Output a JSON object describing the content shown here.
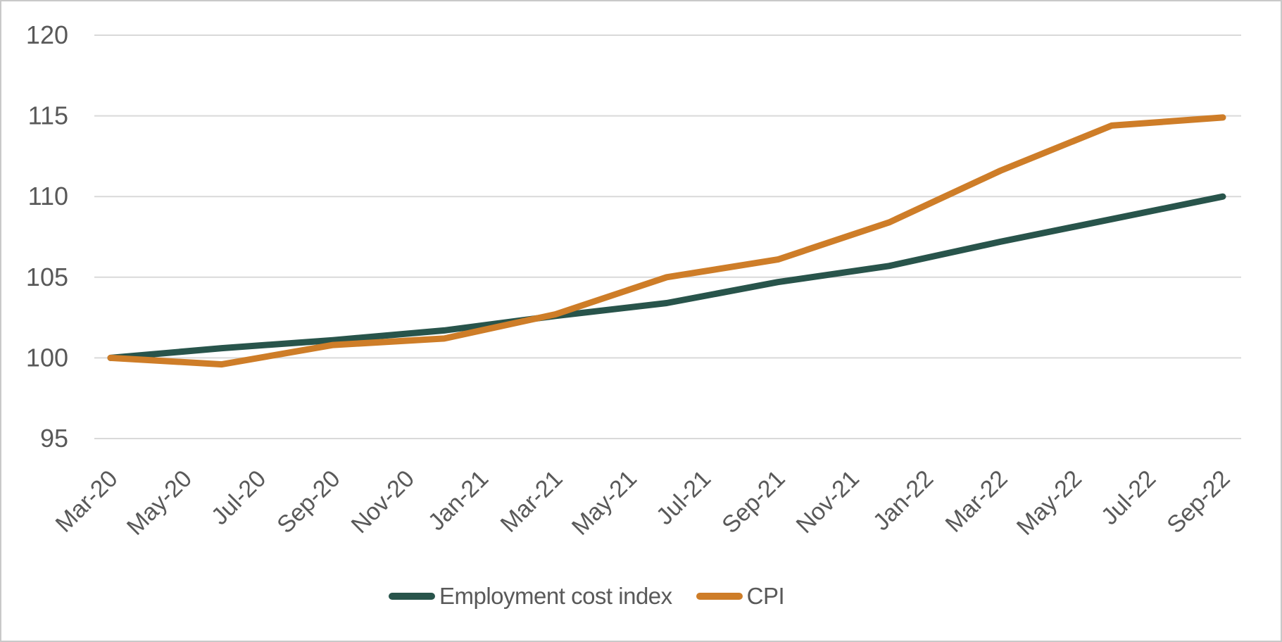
{
  "chart_data": {
    "type": "line",
    "title": "",
    "x_axis": {
      "tick_labels": [
        "Mar-20",
        "May-20",
        "Jul-20",
        "Sep-20",
        "Nov-20",
        "Jan-21",
        "Mar-21",
        "May-21",
        "Jul-21",
        "Sep-21",
        "Nov-21",
        "Jan-22",
        "Mar-22",
        "May-22",
        "Jul-22",
        "Sep-22"
      ],
      "tick_interval_months": 2,
      "label_rotation_deg": -45
    },
    "y_axis": {
      "ticks": [
        95,
        100,
        105,
        110,
        115,
        120
      ],
      "range": [
        95,
        120
      ]
    },
    "categories": [
      "Mar-20",
      "Jun-20",
      "Sep-20",
      "Dec-20",
      "Mar-21",
      "Jun-21",
      "Sep-21",
      "Dec-21",
      "Mar-22",
      "Jun-22",
      "Sep-22"
    ],
    "series": [
      {
        "name": "Employment cost index",
        "color": "#28544B",
        "values": [
          100.0,
          100.6,
          101.1,
          101.7,
          102.6,
          103.4,
          104.7,
          105.7,
          107.2,
          108.6,
          110.0
        ]
      },
      {
        "name": "CPI",
        "color": "#CE7D28",
        "values": [
          100.0,
          99.6,
          100.8,
          101.2,
          102.7,
          105.0,
          106.1,
          108.4,
          111.6,
          114.4,
          114.9
        ]
      }
    ],
    "legend_position": "bottom",
    "grid": "horizontal",
    "styles": {
      "grid_color": "#D9D9D9",
      "label_color": "#595959",
      "background": "#FFFFFF",
      "border_color": "#C9C9C9"
    }
  }
}
